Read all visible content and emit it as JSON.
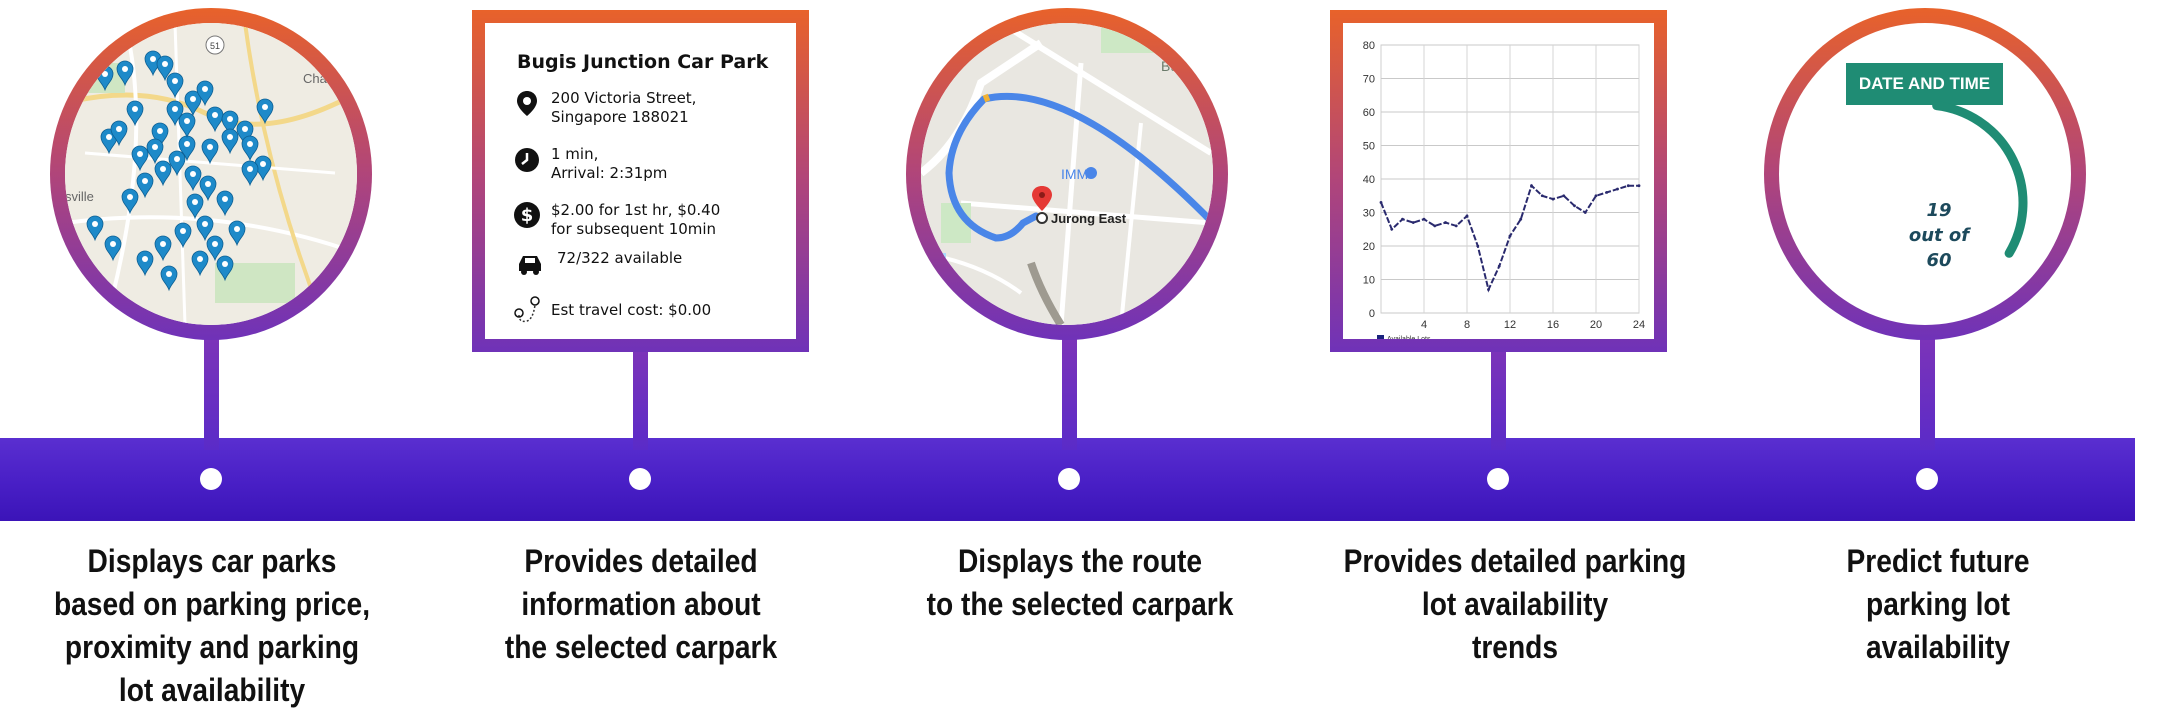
{
  "steps": [
    {
      "caption": [
        "Displays car parks",
        "based on parking price,",
        "proximity and parking",
        "lot availability"
      ]
    },
    {
      "caption": [
        "Provides detailed",
        "information about",
        "the selected carpark"
      ]
    },
    {
      "caption": [
        "Displays the route",
        "to the selected carpark"
      ]
    },
    {
      "caption": [
        "Provides detailed parking",
        "lot availability",
        "trends"
      ]
    },
    {
      "caption": [
        "Predict future",
        "parking lot",
        "availability"
      ]
    }
  ],
  "map1": {
    "labels": [
      "Charle",
      "sville",
      "51"
    ]
  },
  "card": {
    "title": "Bugis Junction Car Park",
    "address": [
      "200 Victoria Street,",
      "Singapore 188021"
    ],
    "time": [
      "1 min,",
      "Arrival: 2:31pm"
    ],
    "price": [
      "$2.00 for 1st hr, $0.40",
      "for subsequent 10min"
    ],
    "availability": "72/322 available",
    "travel_cost": "Est travel cost: $0.00"
  },
  "route": {
    "labels": {
      "bukit": "Bukit",
      "imm": "IMM",
      "destination": "Jurong East"
    }
  },
  "chart_data": {
    "type": "line",
    "x": [
      0,
      1,
      2,
      3,
      4,
      5,
      6,
      7,
      8,
      9,
      10,
      11,
      12,
      13,
      14,
      15,
      16,
      17,
      18,
      19,
      20,
      21,
      22,
      23,
      24
    ],
    "series": [
      {
        "name": "Available Lots",
        "values": [
          33,
          25,
          28,
          27,
          28,
          26,
          27,
          26,
          29,
          20,
          7,
          14,
          23,
          28,
          38,
          35,
          34,
          35,
          32,
          30,
          35,
          36,
          37,
          38,
          38
        ]
      }
    ],
    "xticks": [
      "4",
      "8",
      "12",
      "16",
      "20",
      "24"
    ],
    "yticks": [
      "0",
      "10",
      "20",
      "30",
      "40",
      "50",
      "60",
      "70",
      "80"
    ],
    "xlim": [
      0,
      24
    ],
    "ylim": [
      0,
      80
    ],
    "legend": "bottom-left"
  },
  "prediction": {
    "badge": "DATE AND TIME",
    "value_lines": [
      "19",
      "out of",
      "60"
    ],
    "value": 19,
    "total": 60
  },
  "colors": {
    "band": "#4a20c7",
    "ring_top": "#e8622a",
    "ring_bottom": "#6f32b8",
    "pin": "#1e8ac9",
    "gauge": "#1f8c74"
  }
}
